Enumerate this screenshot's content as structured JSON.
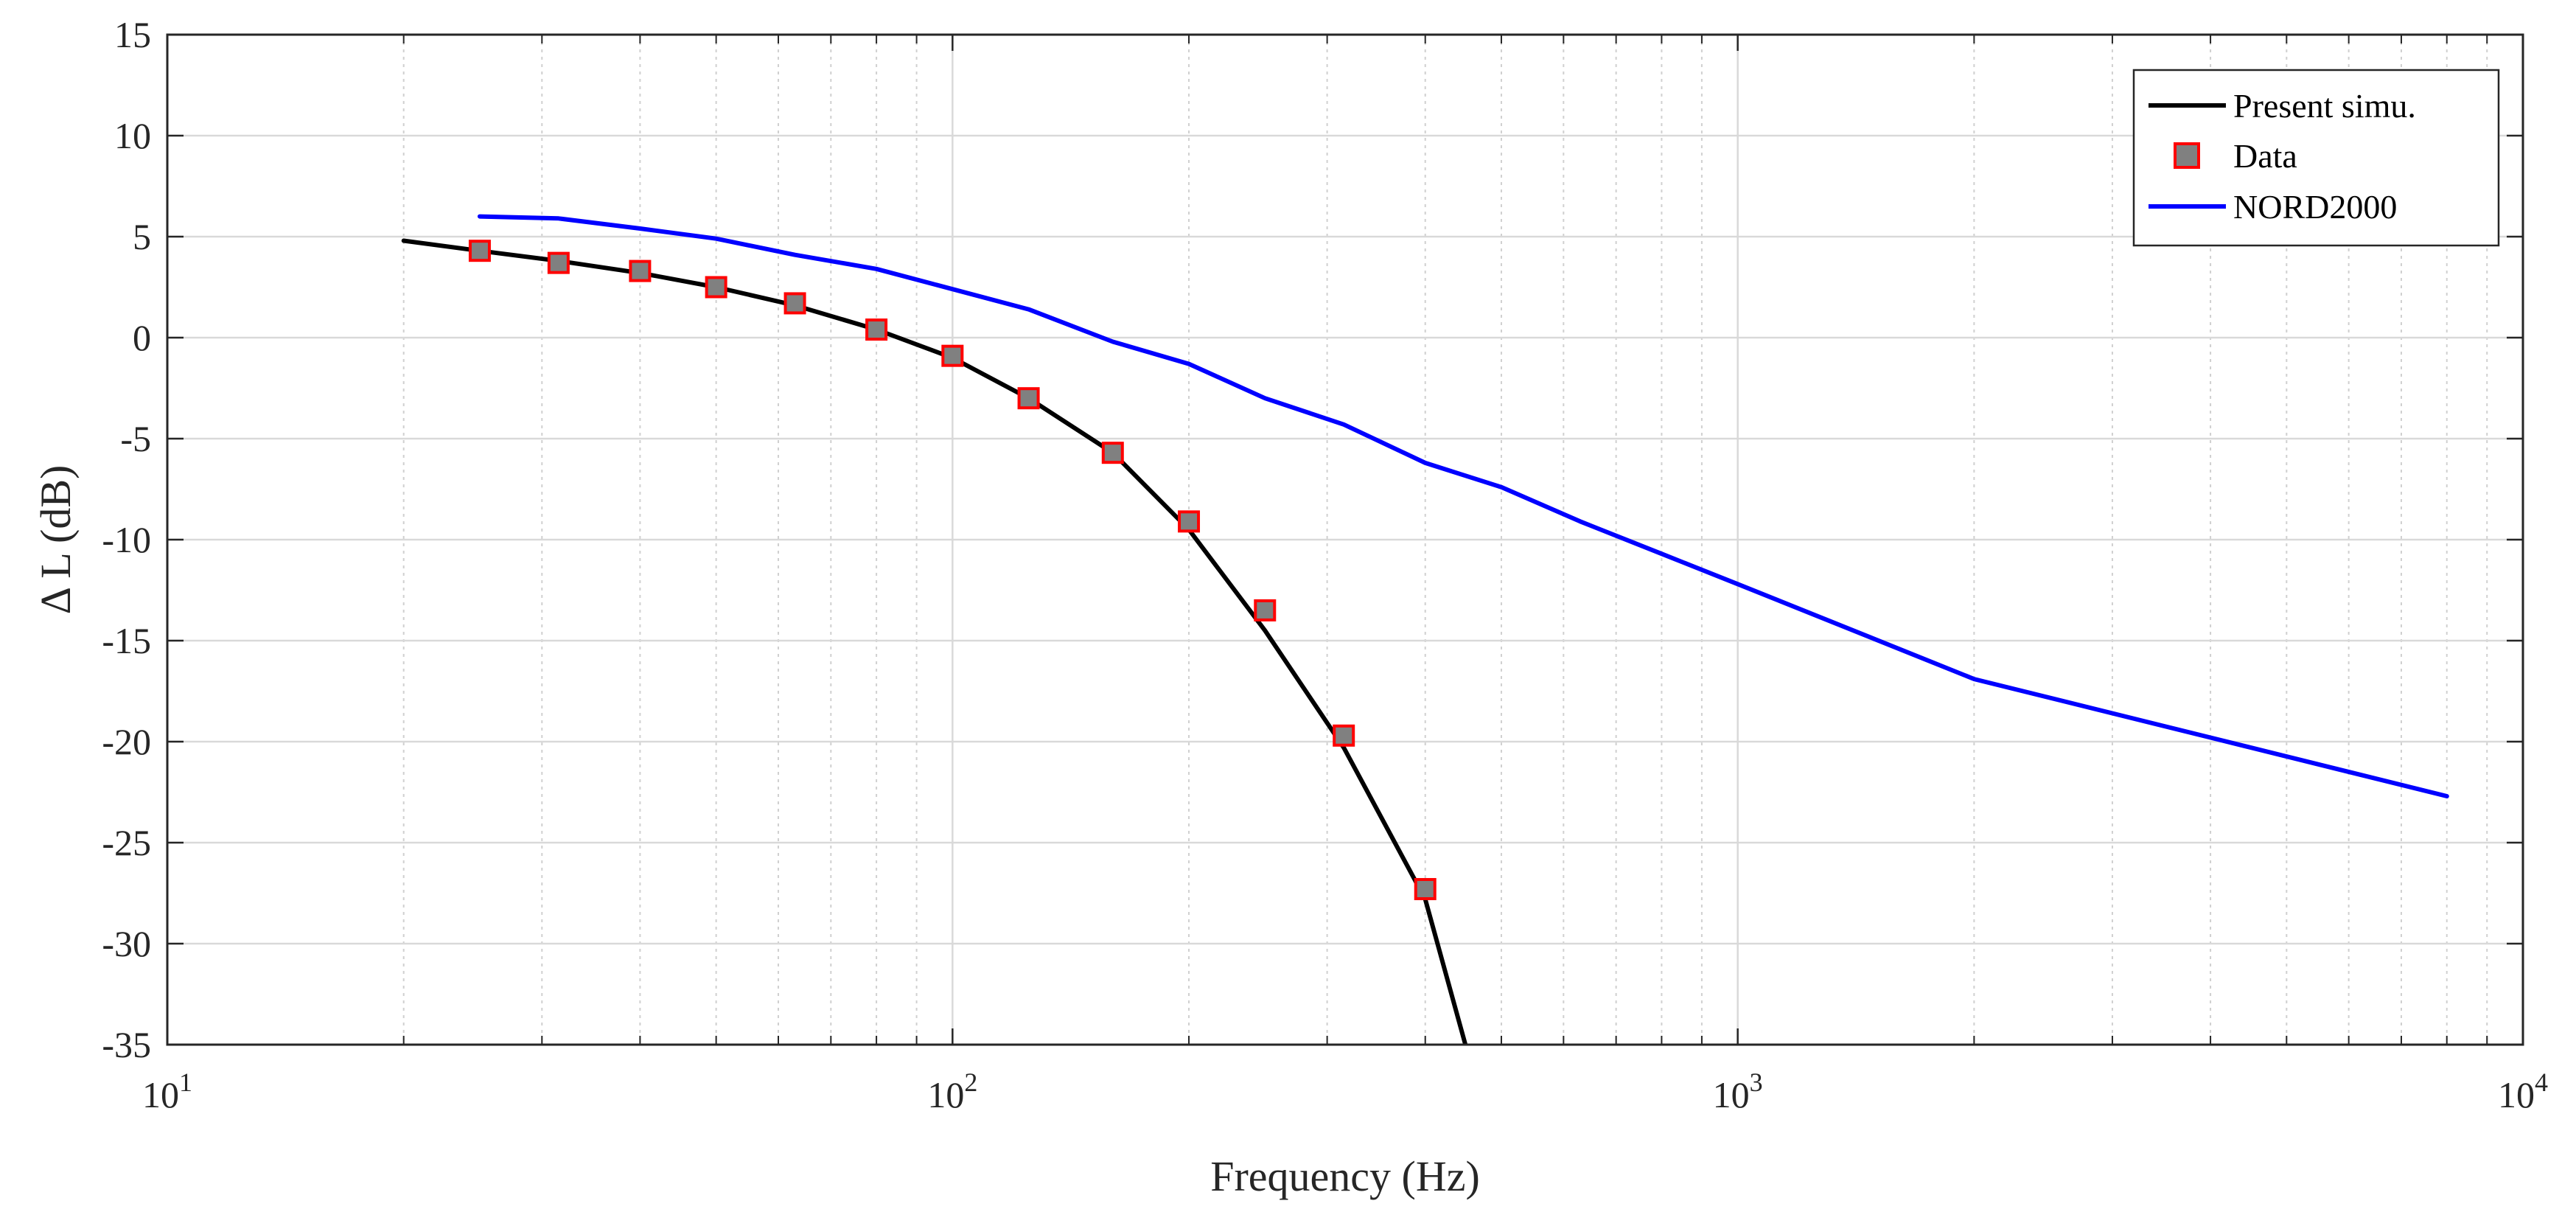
{
  "chart_data": {
    "type": "line",
    "title": "",
    "xlabel": "Frequency (Hz)",
    "ylabel": "Δ L (dB)",
    "xscale": "log",
    "xlim": [
      10,
      10000
    ],
    "ylim": [
      -35,
      15
    ],
    "grid": true,
    "minor_grid_x": true,
    "legend_location": "top-right",
    "x_ticks": [
      {
        "value": 10,
        "base": "10",
        "exp": "1"
      },
      {
        "value": 100,
        "base": "10",
        "exp": "2"
      },
      {
        "value": 1000,
        "base": "10",
        "exp": "3"
      },
      {
        "value": 10000,
        "base": "10",
        "exp": "4"
      }
    ],
    "y_ticks": [
      15,
      10,
      5,
      0,
      -5,
      -10,
      -15,
      -20,
      -25,
      -30,
      -35
    ],
    "y_tick_labels": [
      "15",
      "10",
      "5",
      "0",
      "-5",
      "-10",
      "-15",
      "-20",
      "-25",
      "-30",
      "-35"
    ],
    "series": [
      {
        "name": "Present simu.",
        "style": "line",
        "color": "#000000",
        "x": [
          20,
          25,
          31.5,
          40,
          50,
          63,
          80,
          100,
          125,
          160,
          200,
          250,
          315,
          400,
          450
        ],
        "y": [
          4.8,
          4.3,
          3.8,
          3.2,
          2.5,
          1.6,
          0.4,
          -1.0,
          -3.0,
          -5.7,
          -9.5,
          -14.5,
          -20.3,
          -27.8,
          -35
        ]
      },
      {
        "name": "Data",
        "style": "marker",
        "color": "#808080",
        "edge_color": "#ff0000",
        "marker": "square",
        "x": [
          25,
          31.5,
          40,
          50,
          63,
          80,
          100,
          125,
          160,
          200,
          250,
          315,
          400
        ],
        "y": [
          4.3,
          3.7,
          3.3,
          2.5,
          1.7,
          0.4,
          -0.9,
          -3.0,
          -5.7,
          -9.1,
          -13.5,
          -19.7,
          -27.3
        ]
      },
      {
        "name": "NORD2000",
        "style": "line",
        "color": "#0000ff",
        "x": [
          25,
          31.5,
          40,
          50,
          63,
          80,
          100,
          125,
          160,
          200,
          250,
          315,
          400,
          500,
          630,
          800,
          1000,
          2000,
          4000,
          8000
        ],
        "y": [
          6.0,
          5.9,
          5.4,
          4.9,
          4.1,
          3.4,
          2.4,
          1.4,
          -0.2,
          -1.3,
          -3.0,
          -4.3,
          -6.2,
          -7.4,
          -9.1,
          -10.7,
          -12.2,
          -16.9,
          -19.8,
          -22.7
        ]
      }
    ]
  }
}
